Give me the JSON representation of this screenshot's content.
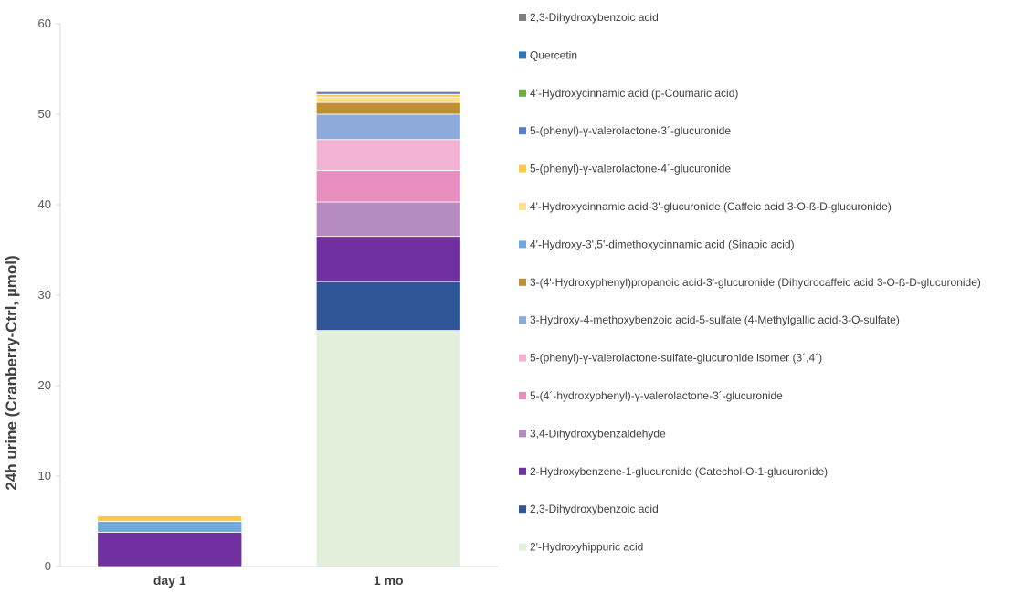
{
  "chart_data": {
    "type": "bar",
    "stacked": true,
    "ylabel": "24h urine (Cranberry-Ctrl, µmol)",
    "ylim": [
      0,
      60
    ],
    "yticks": [
      0,
      10,
      20,
      30,
      40,
      50,
      60
    ],
    "grid": false,
    "legend_position": "right",
    "categories": [
      "day 1",
      "1 mo"
    ],
    "series": [
      {
        "name": "2'-Hydroxyhippuric acid",
        "color": "#e2efda",
        "values": [
          0,
          26.1
        ]
      },
      {
        "name": "2,3-Dihydroxybenzoic acid",
        "color": "#2f5597",
        "values": [
          0,
          5.4
        ]
      },
      {
        "name": "2-Hydroxybenzene-1-glucuronide (Catechol-O-1-glucuronide)",
        "color": "#7030a0",
        "values": [
          3.8,
          5.0
        ]
      },
      {
        "name": "3,4-Dihydroxybenzaldehyde",
        "color": "#b58bc0",
        "values": [
          0,
          3.8
        ]
      },
      {
        "name": "5-(4´-hydroxyphenyl)-γ-valerolactone-3´-glucuronide",
        "color": "#e98fbf",
        "values": [
          0,
          3.5
        ]
      },
      {
        "name": "5-(phenyl)-γ-valerolactone-sulfate-glucuronide isomer (3´,4´)",
        "color": "#f2b3d2",
        "values": [
          0,
          3.4
        ]
      },
      {
        "name": "3-Hydroxy-4-methoxybenzoic acid-5-sulfate (4-Methylgallic acid-3-O-sulfate)",
        "color": "#8eaadb",
        "values": [
          0,
          2.8
        ]
      },
      {
        "name": "3-(4'-Hydroxyphenyl)propanoic acid-3'-glucuronide (Dihydrocaffeic acid 3-O-ß-D-glucuronide)",
        "color": "#bf9030",
        "values": [
          0,
          1.3
        ]
      },
      {
        "name": "4'-Hydroxy-3',5'-dimethoxycinnamic acid (Sinapic acid)",
        "color": "#6fa8dc",
        "values": [
          1.2,
          0
        ]
      },
      {
        "name": "4'-Hydroxycinnamic acid-3'-glucuronide (Caffeic acid 3-O-ß-D-glucuronide)",
        "color": "#ffe08a",
        "values": [
          0,
          0.6
        ]
      },
      {
        "name": "5-(phenyl)-γ-valerolactone-4´-glucuronide",
        "color": "#ffc845",
        "values": [
          0.6,
          0.3
        ]
      },
      {
        "name": "5-(phenyl)-γ-valerolactone-3´-glucuronide",
        "color": "#5b7ec2",
        "values": [
          0,
          0.3
        ]
      },
      {
        "name": "4'-Hydroxycinnamic acid (p-Coumaric acid)",
        "color": "#70ad47",
        "values": [
          0,
          0
        ]
      },
      {
        "name": "Quercetin",
        "color": "#2e75b6",
        "values": [
          0,
          0
        ]
      },
      {
        "name": "2,3-Dihydroxybenzoic acid",
        "color": "#7f7f7f",
        "values": [
          0,
          0
        ]
      }
    ]
  }
}
